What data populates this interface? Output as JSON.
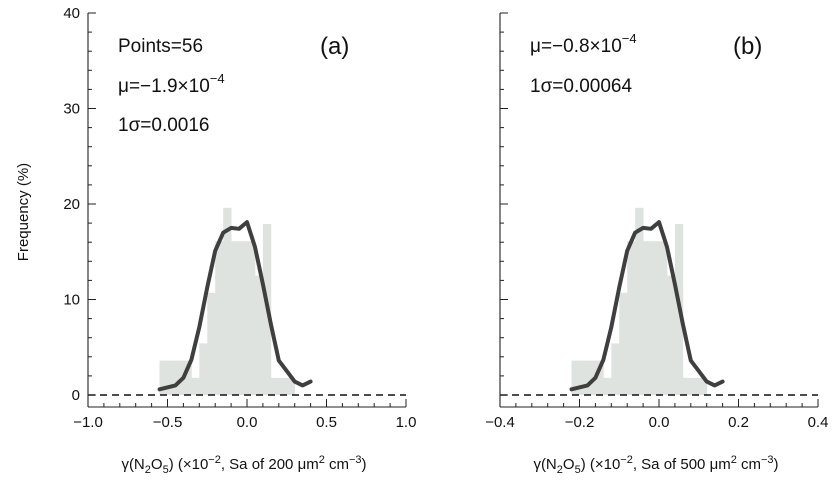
{
  "chart_data": [
    {
      "type": "bar",
      "panel_label": "(a)",
      "stats": {
        "points": "Points=56",
        "mu": "μ=−1.9×10",
        "mu_exp": "−4",
        "sigma": "1σ=0.0016"
      },
      "xlabel": {
        "pre": "γ(N",
        "sub1": "2",
        "mid1": "O",
        "sub2": "5",
        "mid2": ") (×10",
        "sup1": "−2",
        "mid3": ", Sa of 200 μm",
        "sup2": "2",
        "mid4": " cm",
        "sup3": "−3",
        "post": ")"
      },
      "xlim": [
        -1.0,
        1.0
      ],
      "ylim": [
        0,
        40
      ],
      "xticks": [
        -1.0,
        -0.5,
        0.0,
        0.5,
        1.0
      ],
      "xtick_labels": [
        "−1.0",
        "−0.5",
        "0.0",
        "0.5",
        "1.0"
      ],
      "yticks": [
        0,
        10,
        20,
        30,
        40
      ],
      "ytick_labels": [
        "0",
        "10",
        "20",
        "30",
        "40"
      ],
      "ylabel": "Frequency (%)",
      "histogram": {
        "bin_edges": [
          -0.55,
          -0.45,
          -0.35,
          -0.3,
          -0.25,
          -0.2,
          -0.15,
          -0.1,
          -0.05,
          0.0,
          0.05,
          0.1,
          0.15,
          0.2,
          0.25,
          0.3
        ],
        "values": [
          3.6,
          3.6,
          1.8,
          5.4,
          10.7,
          16.1,
          19.6,
          16.1,
          16.1,
          16.1,
          12.5,
          17.9,
          1.8,
          1.8,
          1.8
        ]
      },
      "fit": {
        "x": [
          -0.55,
          -0.45,
          -0.4,
          -0.35,
          -0.3,
          -0.25,
          -0.2,
          -0.15,
          -0.1,
          -0.05,
          0.0,
          0.05,
          0.1,
          0.15,
          0.2,
          0.25,
          0.3,
          0.35,
          0.4
        ],
        "y": [
          0.6,
          1.0,
          1.8,
          3.7,
          7.1,
          11.3,
          15.1,
          17.0,
          17.5,
          17.4,
          18.1,
          15.5,
          11.6,
          7.4,
          3.6,
          2.5,
          1.4,
          1.0,
          1.4
        ]
      }
    },
    {
      "type": "bar",
      "panel_label": "(b)",
      "stats": {
        "mu": "μ=−0.8×10",
        "mu_exp": "−4",
        "sigma": "1σ=0.00064"
      },
      "xlabel": {
        "pre": "γ(N",
        "sub1": "2",
        "mid1": "O",
        "sub2": "5",
        "mid2": ") (×10",
        "sup1": "−2",
        "mid3": ", Sa of 500 μm",
        "sup2": "2",
        "mid4": " cm",
        "sup3": "−3",
        "post": ")"
      },
      "xlim": [
        -0.4,
        0.4
      ],
      "ylim": [
        0,
        40
      ],
      "xticks": [
        -0.4,
        -0.2,
        0.0,
        0.2,
        0.4
      ],
      "xtick_labels": [
        "−0.4",
        "−0.2",
        "0.0",
        "0.2",
        "0.4"
      ],
      "yticks": [
        0,
        10,
        20,
        30,
        40
      ],
      "histogram": {
        "bin_edges": [
          -0.22,
          -0.18,
          -0.14,
          -0.12,
          -0.1,
          -0.08,
          -0.06,
          -0.04,
          -0.02,
          0.0,
          0.02,
          0.04,
          0.06,
          0.08,
          0.1,
          0.12
        ],
        "values": [
          3.6,
          3.6,
          1.8,
          5.4,
          10.7,
          16.1,
          19.6,
          16.1,
          16.1,
          16.1,
          12.5,
          17.9,
          1.8,
          1.8,
          1.8
        ]
      },
      "fit": {
        "x": [
          -0.22,
          -0.18,
          -0.16,
          -0.14,
          -0.12,
          -0.1,
          -0.08,
          -0.06,
          -0.04,
          -0.02,
          0.0,
          0.02,
          0.04,
          0.06,
          0.08,
          0.1,
          0.12,
          0.14,
          0.16
        ],
        "y": [
          0.6,
          1.0,
          1.8,
          3.7,
          7.1,
          11.3,
          15.1,
          17.0,
          17.5,
          17.4,
          18.1,
          15.5,
          11.6,
          7.4,
          3.6,
          2.5,
          1.4,
          1.0,
          1.4
        ]
      }
    }
  ]
}
